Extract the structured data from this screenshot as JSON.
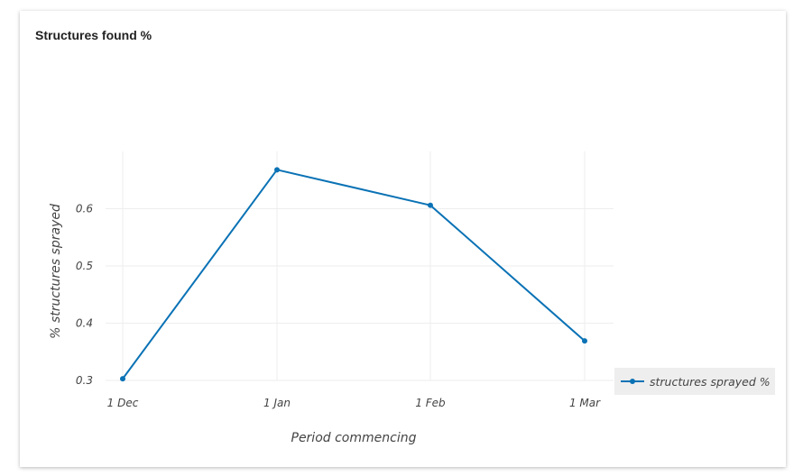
{
  "card": {
    "title": "Structures found %"
  },
  "chart_data": {
    "type": "line",
    "title": "Structures found %",
    "xlabel": "Period commencing",
    "ylabel": "% structures sprayed",
    "x": [
      "1 Dec",
      "1 Jan",
      "1 Feb",
      "1 Mar"
    ],
    "x_tick_labels": [
      "1 Dec",
      "1 Jan",
      "1 Feb",
      "1 Mar"
    ],
    "y_ticks": [
      0.3,
      0.4,
      0.5,
      0.6
    ],
    "y_tick_labels": [
      "0.3",
      "0.4",
      "0.5",
      "0.6"
    ],
    "ylim": [
      0.3,
      0.7
    ],
    "grid": true,
    "legend_position": "right",
    "series": [
      {
        "name": "structures sprayed %",
        "color": "#0a72b5",
        "values": [
          0.303,
          0.668,
          0.606,
          0.369
        ]
      }
    ]
  }
}
